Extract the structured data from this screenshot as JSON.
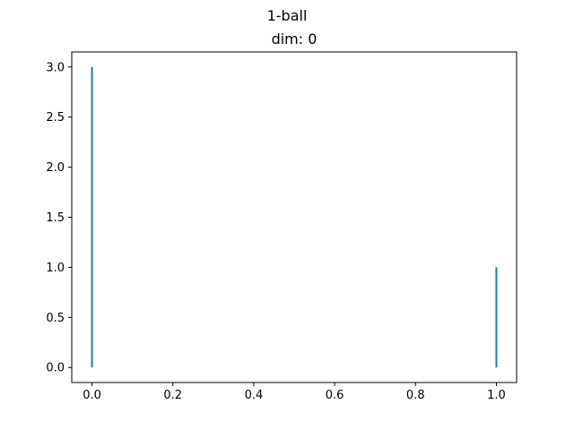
{
  "chart_data": {
    "type": "bar",
    "suptitle": "1-ball",
    "title": "dim: 0",
    "xlabel": "",
    "ylabel": "",
    "xlim": [
      -0.05,
      1.05
    ],
    "ylim": [
      -0.15,
      3.15
    ],
    "xticks": [
      0.0,
      0.2,
      0.4,
      0.6,
      0.8,
      1.0
    ],
    "xtick_labels": [
      "0.0",
      "0.2",
      "0.4",
      "0.6",
      "0.8",
      "1.0"
    ],
    "yticks": [
      0.0,
      0.5,
      1.0,
      1.5,
      2.0,
      2.5,
      3.0
    ],
    "ytick_labels": [
      "0.0",
      "0.5",
      "1.0",
      "1.5",
      "2.0",
      "2.5",
      "3.0"
    ],
    "series": [
      {
        "x": [
          0.0,
          1.0
        ],
        "values": [
          3.0,
          1.0
        ],
        "color": "#1f77b4"
      }
    ],
    "grid": false,
    "legend": "none"
  }
}
